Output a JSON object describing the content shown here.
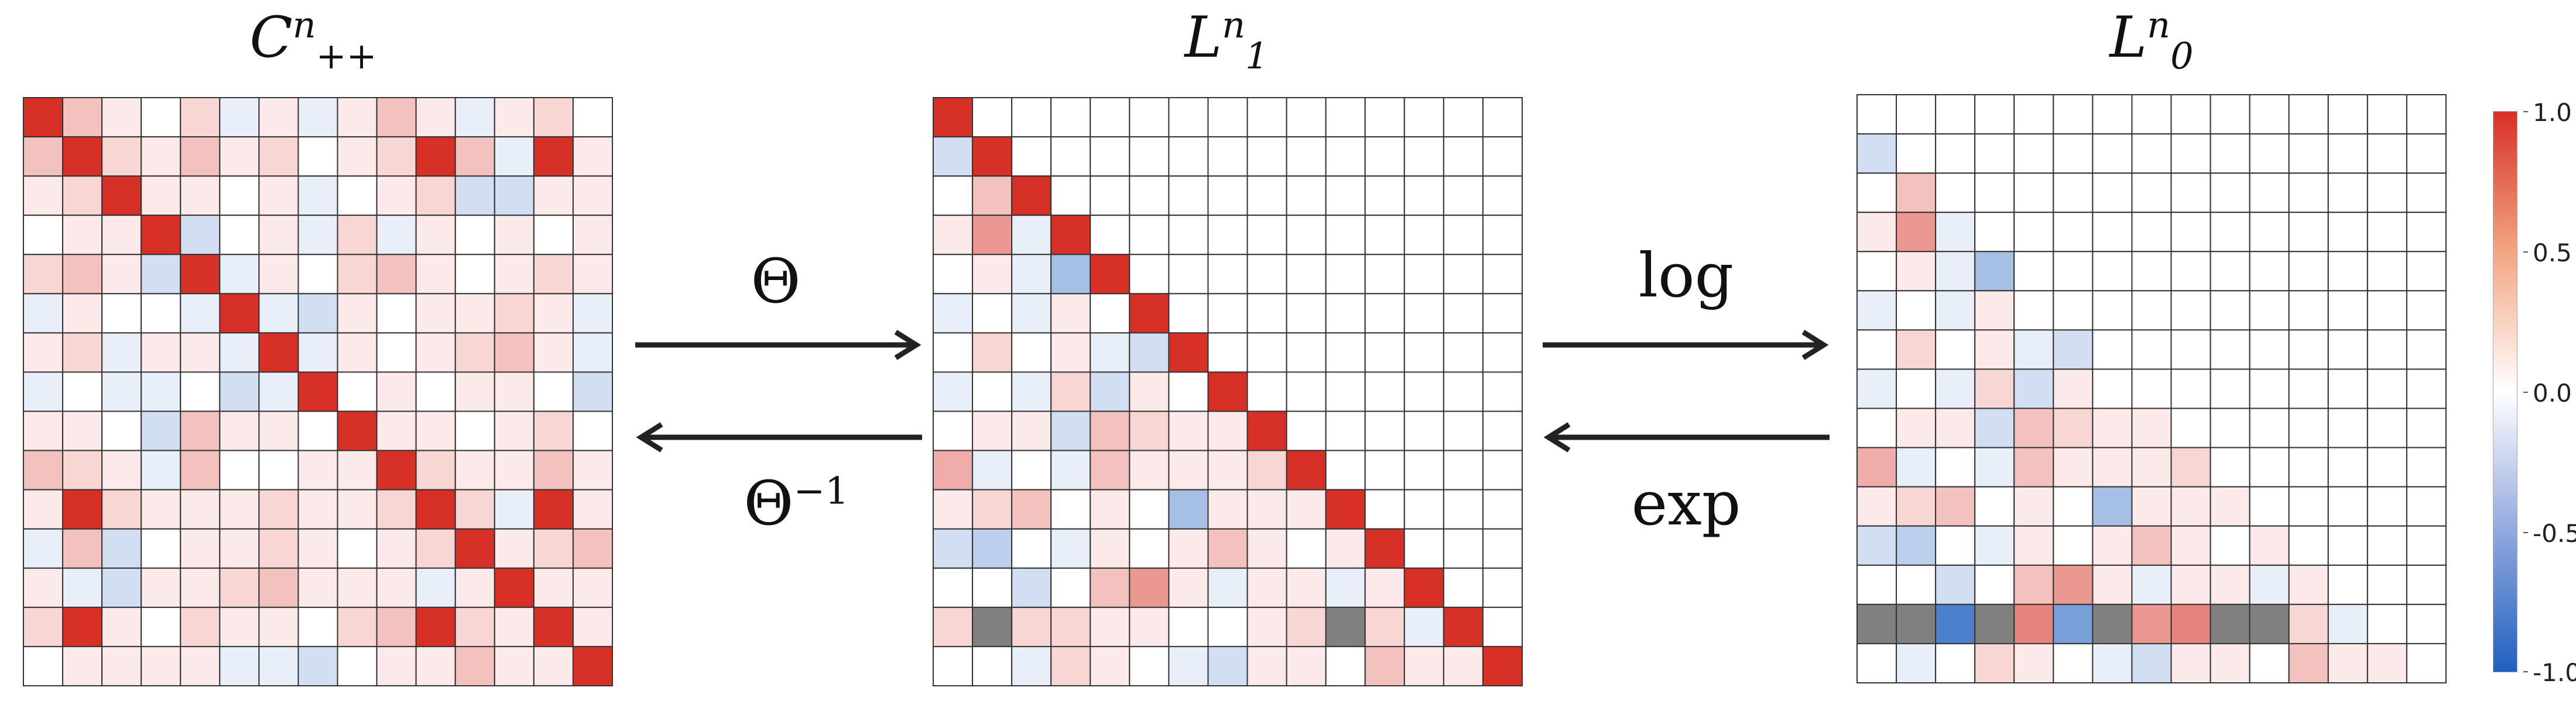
{
  "panels": [
    {
      "id": "spd",
      "symbol": "C",
      "sup": "n",
      "sub": "++",
      "type": "full"
    },
    {
      "id": "chol",
      "symbol": "L",
      "sup": "n",
      "sub": "1",
      "type": "lower-unit"
    },
    {
      "id": "logchol",
      "symbol": "L",
      "sup": "n",
      "sub": "0",
      "type": "strict-lower"
    }
  ],
  "operators": {
    "forward_1": "Θ",
    "inverse_1_base": "Θ",
    "inverse_1_exp": "−1",
    "forward_2": "log",
    "inverse_2": "exp"
  },
  "colorbar": {
    "max_label": "1.0",
    "upper_label": "0.5",
    "mid_label": "0.0",
    "lower_label": "-0.5",
    "min_label": "-1.0",
    "colors": {
      "max": "#d73027",
      "mid": "#ffffff",
      "min": "#1f5fbf",
      "missing": "#808080"
    }
  },
  "chart_data": [
    {
      "type": "heatmap",
      "name": "C_++^n",
      "size": 15,
      "range": [
        -1,
        1
      ],
      "values": [
        [
          1.0,
          0.3,
          0.1,
          0.0,
          0.2,
          -0.1,
          0.1,
          -0.1,
          0.1,
          0.3,
          0.1,
          -0.1,
          0.1,
          0.2,
          0.0
        ],
        [
          0.3,
          1.0,
          0.2,
          0.1,
          0.3,
          0.1,
          0.2,
          0.0,
          0.1,
          0.2,
          1.0,
          0.3,
          -0.1,
          1.0,
          0.1
        ],
        [
          0.1,
          0.2,
          1.0,
          0.1,
          0.1,
          0.0,
          0.1,
          -0.1,
          0.0,
          0.1,
          0.2,
          -0.2,
          -0.2,
          0.1,
          0.1
        ],
        [
          0.0,
          0.1,
          0.1,
          1.0,
          -0.2,
          0.0,
          0.1,
          -0.1,
          0.2,
          -0.1,
          0.1,
          0.0,
          0.1,
          0.0,
          0.1
        ],
        [
          0.2,
          0.3,
          0.1,
          -0.2,
          1.0,
          -0.1,
          0.1,
          0.0,
          0.2,
          0.3,
          0.1,
          0.0,
          0.1,
          0.2,
          0.1
        ],
        [
          -0.1,
          0.1,
          0.0,
          0.0,
          -0.1,
          1.0,
          -0.1,
          -0.2,
          0.1,
          0.0,
          0.1,
          0.1,
          0.2,
          0.1,
          -0.1
        ],
        [
          0.1,
          0.2,
          -0.1,
          0.1,
          0.1,
          -0.1,
          1.0,
          -0.1,
          0.1,
          0.0,
          0.1,
          0.2,
          0.3,
          0.1,
          -0.1
        ],
        [
          -0.1,
          0.0,
          -0.1,
          -0.1,
          0.0,
          -0.2,
          -0.1,
          1.0,
          0.0,
          0.1,
          0.0,
          0.1,
          0.1,
          0.0,
          -0.2
        ],
        [
          0.1,
          0.1,
          0.0,
          -0.2,
          0.3,
          0.1,
          0.1,
          0.0,
          1.0,
          0.1,
          0.1,
          0.0,
          0.1,
          0.2,
          0.0
        ],
        [
          0.3,
          0.2,
          0.1,
          -0.1,
          0.3,
          0.0,
          0.0,
          0.1,
          0.1,
          1.0,
          0.2,
          0.1,
          0.1,
          0.3,
          0.1
        ],
        [
          0.1,
          1.0,
          0.2,
          0.1,
          0.1,
          0.1,
          0.2,
          0.1,
          0.1,
          0.2,
          1.0,
          0.2,
          -0.1,
          1.0,
          0.1
        ],
        [
          -0.1,
          0.3,
          -0.2,
          0.0,
          0.1,
          0.1,
          0.2,
          0.1,
          0.0,
          0.1,
          0.2,
          1.0,
          0.1,
          0.2,
          0.3
        ],
        [
          0.1,
          -0.1,
          -0.2,
          0.1,
          0.1,
          0.2,
          0.3,
          0.1,
          0.1,
          0.1,
          -0.1,
          0.1,
          1.0,
          0.1,
          0.1
        ],
        [
          0.2,
          1.0,
          0.1,
          0.0,
          0.2,
          0.1,
          0.1,
          0.0,
          0.2,
          0.3,
          1.0,
          0.2,
          0.1,
          1.0,
          0.1
        ],
        [
          0.0,
          0.1,
          0.1,
          0.1,
          0.1,
          -0.1,
          -0.1,
          -0.2,
          0.0,
          0.1,
          0.1,
          0.3,
          0.1,
          0.1,
          1.0
        ]
      ]
    },
    {
      "type": "heatmap",
      "name": "L_1^n",
      "size": 15,
      "range": [
        -1,
        1
      ],
      "missing_value_color": "#808080",
      "values": [
        [
          1.0,
          null,
          null,
          null,
          null,
          null,
          null,
          null,
          null,
          null,
          null,
          null,
          null,
          null,
          null
        ],
        [
          -0.2,
          1.0,
          null,
          null,
          null,
          null,
          null,
          null,
          null,
          null,
          null,
          null,
          null,
          null,
          null
        ],
        [
          0.0,
          0.3,
          1.0,
          null,
          null,
          null,
          null,
          null,
          null,
          null,
          null,
          null,
          null,
          null,
          null
        ],
        [
          0.1,
          0.5,
          -0.1,
          1.0,
          null,
          null,
          null,
          null,
          null,
          null,
          null,
          null,
          null,
          null,
          null
        ],
        [
          0.0,
          0.1,
          -0.1,
          -0.4,
          1.0,
          null,
          null,
          null,
          null,
          null,
          null,
          null,
          null,
          null,
          null
        ],
        [
          -0.1,
          0.0,
          -0.1,
          0.1,
          0.0,
          1.0,
          null,
          null,
          null,
          null,
          null,
          null,
          null,
          null,
          null
        ],
        [
          0.0,
          0.2,
          0.0,
          0.1,
          -0.1,
          -0.2,
          1.0,
          null,
          null,
          null,
          null,
          null,
          null,
          null,
          null
        ],
        [
          -0.1,
          0.0,
          -0.1,
          0.2,
          -0.2,
          0.1,
          0.0,
          1.0,
          null,
          null,
          null,
          null,
          null,
          null,
          null
        ],
        [
          0.0,
          0.1,
          0.1,
          -0.2,
          0.3,
          0.2,
          0.1,
          0.1,
          1.0,
          null,
          null,
          null,
          null,
          null,
          null
        ],
        [
          0.4,
          -0.1,
          0.0,
          -0.1,
          0.3,
          0.1,
          0.1,
          0.1,
          0.2,
          1.0,
          null,
          null,
          null,
          null,
          null
        ],
        [
          0.1,
          0.2,
          0.3,
          0.0,
          0.1,
          0.0,
          -0.4,
          0.1,
          0.1,
          0.1,
          1.0,
          null,
          null,
          null,
          null
        ],
        [
          -0.2,
          -0.3,
          0.0,
          -0.1,
          0.1,
          0.0,
          0.1,
          0.3,
          0.1,
          0.0,
          0.1,
          1.0,
          null,
          null,
          null
        ],
        [
          0.0,
          0.0,
          -0.2,
          0.0,
          0.3,
          0.5,
          0.1,
          -0.1,
          0.1,
          0.1,
          -0.1,
          0.1,
          1.0,
          null,
          null
        ],
        [
          0.2,
          "NaN",
          0.2,
          0.2,
          0.1,
          0.1,
          0.0,
          0.0,
          0.1,
          0.2,
          "NaN",
          0.2,
          -0.1,
          1.0,
          null
        ],
        [
          0.0,
          0.0,
          -0.1,
          0.2,
          0.1,
          0.0,
          -0.1,
          -0.2,
          0.1,
          0.1,
          0.0,
          0.3,
          0.1,
          0.1,
          1.0
        ]
      ]
    },
    {
      "type": "heatmap",
      "name": "L_0^n",
      "size": 15,
      "range": [
        -1,
        1
      ],
      "missing_value_color": "#808080",
      "values": [
        [
          null,
          null,
          null,
          null,
          null,
          null,
          null,
          null,
          null,
          null,
          null,
          null,
          null,
          null,
          null
        ],
        [
          -0.2,
          null,
          null,
          null,
          null,
          null,
          null,
          null,
          null,
          null,
          null,
          null,
          null,
          null,
          null
        ],
        [
          0.0,
          0.3,
          null,
          null,
          null,
          null,
          null,
          null,
          null,
          null,
          null,
          null,
          null,
          null,
          null
        ],
        [
          0.1,
          0.5,
          -0.1,
          null,
          null,
          null,
          null,
          null,
          null,
          null,
          null,
          null,
          null,
          null,
          null
        ],
        [
          0.0,
          0.1,
          -0.1,
          -0.4,
          null,
          null,
          null,
          null,
          null,
          null,
          null,
          null,
          null,
          null,
          null
        ],
        [
          -0.1,
          0.0,
          -0.1,
          0.1,
          0.0,
          null,
          null,
          null,
          null,
          null,
          null,
          null,
          null,
          null,
          null
        ],
        [
          0.0,
          0.2,
          0.0,
          0.1,
          -0.1,
          -0.2,
          null,
          null,
          null,
          null,
          null,
          null,
          null,
          null,
          null
        ],
        [
          -0.1,
          0.0,
          -0.1,
          0.2,
          -0.2,
          0.1,
          0.0,
          null,
          null,
          null,
          null,
          null,
          null,
          null,
          null
        ],
        [
          0.0,
          0.1,
          0.1,
          -0.2,
          0.3,
          0.2,
          0.1,
          0.1,
          null,
          null,
          null,
          null,
          null,
          null,
          null
        ],
        [
          0.4,
          -0.1,
          0.0,
          -0.1,
          0.3,
          0.1,
          0.1,
          0.1,
          0.2,
          null,
          null,
          null,
          null,
          null,
          null
        ],
        [
          0.1,
          0.2,
          0.3,
          0.0,
          0.1,
          0.0,
          -0.4,
          0.1,
          0.1,
          0.1,
          null,
          null,
          null,
          null,
          null
        ],
        [
          -0.2,
          -0.3,
          0.0,
          -0.1,
          0.1,
          0.0,
          0.1,
          0.3,
          0.1,
          0.0,
          0.1,
          null,
          null,
          null,
          null
        ],
        [
          0.0,
          0.0,
          -0.2,
          0.0,
          0.3,
          0.5,
          0.1,
          -0.1,
          0.1,
          0.1,
          -0.1,
          0.1,
          null,
          null,
          null
        ],
        [
          "NaN",
          "NaN",
          -0.8,
          "NaN",
          0.6,
          -0.6,
          "NaN",
          0.5,
          0.6,
          "NaN",
          "NaN",
          0.2,
          -0.1,
          null,
          null
        ],
        [
          0.0,
          -0.1,
          0.0,
          0.2,
          0.1,
          0.0,
          -0.1,
          -0.2,
          0.1,
          0.1,
          0.0,
          0.3,
          0.1,
          0.1,
          null
        ]
      ]
    }
  ]
}
